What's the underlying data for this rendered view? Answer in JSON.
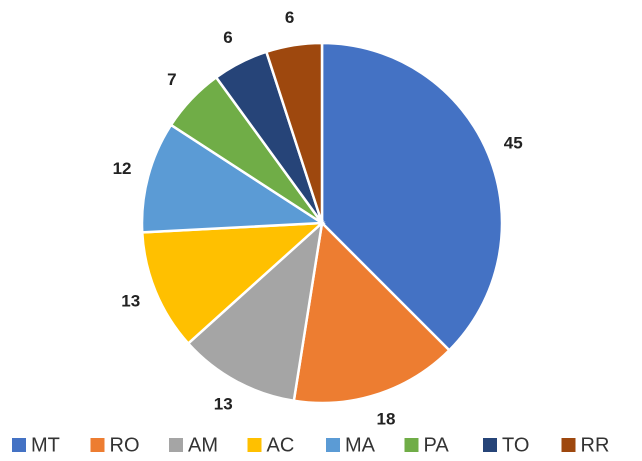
{
  "chart_data": {
    "type": "pie",
    "categories": [
      "MT",
      "RO",
      "AM",
      "AC",
      "MA",
      "PA",
      "TO",
      "RR"
    ],
    "values": [
      45,
      18,
      13,
      13,
      12,
      7,
      6,
      6
    ],
    "colors": [
      "#4472c4",
      "#ed7d31",
      "#a5a5a5",
      "#ffc000",
      "#5b9bd5",
      "#70ad47",
      "#264478",
      "#9e480e"
    ],
    "legend": "bottom"
  }
}
